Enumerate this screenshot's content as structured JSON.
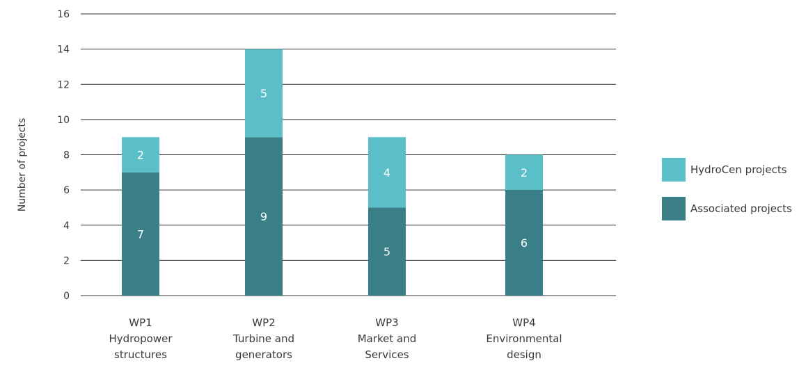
{
  "chart_data": {
    "type": "bar",
    "stacked": true,
    "categories": [
      [
        "WP1",
        "Hydropower",
        "structures"
      ],
      [
        "WP2",
        "Turbine and",
        "generators"
      ],
      [
        "WP3",
        "Market and",
        "Services"
      ],
      [
        "WP4",
        "Environmental",
        "design"
      ]
    ],
    "series": [
      {
        "name": "Associated projects",
        "values": [
          7,
          9,
          5,
          6
        ],
        "color": "#3a7f87"
      },
      {
        "name": "HydroCen projects",
        "values": [
          2,
          5,
          4,
          2
        ],
        "color": "#5bbfc9"
      }
    ],
    "ylabel": "Number of projects",
    "ylim": [
      0,
      16
    ],
    "yticks": [
      0,
      2,
      4,
      6,
      8,
      10,
      12,
      14,
      16
    ],
    "grid": true,
    "legend_position": "right",
    "legend_order": [
      "HydroCen projects",
      "Associated projects"
    ]
  }
}
